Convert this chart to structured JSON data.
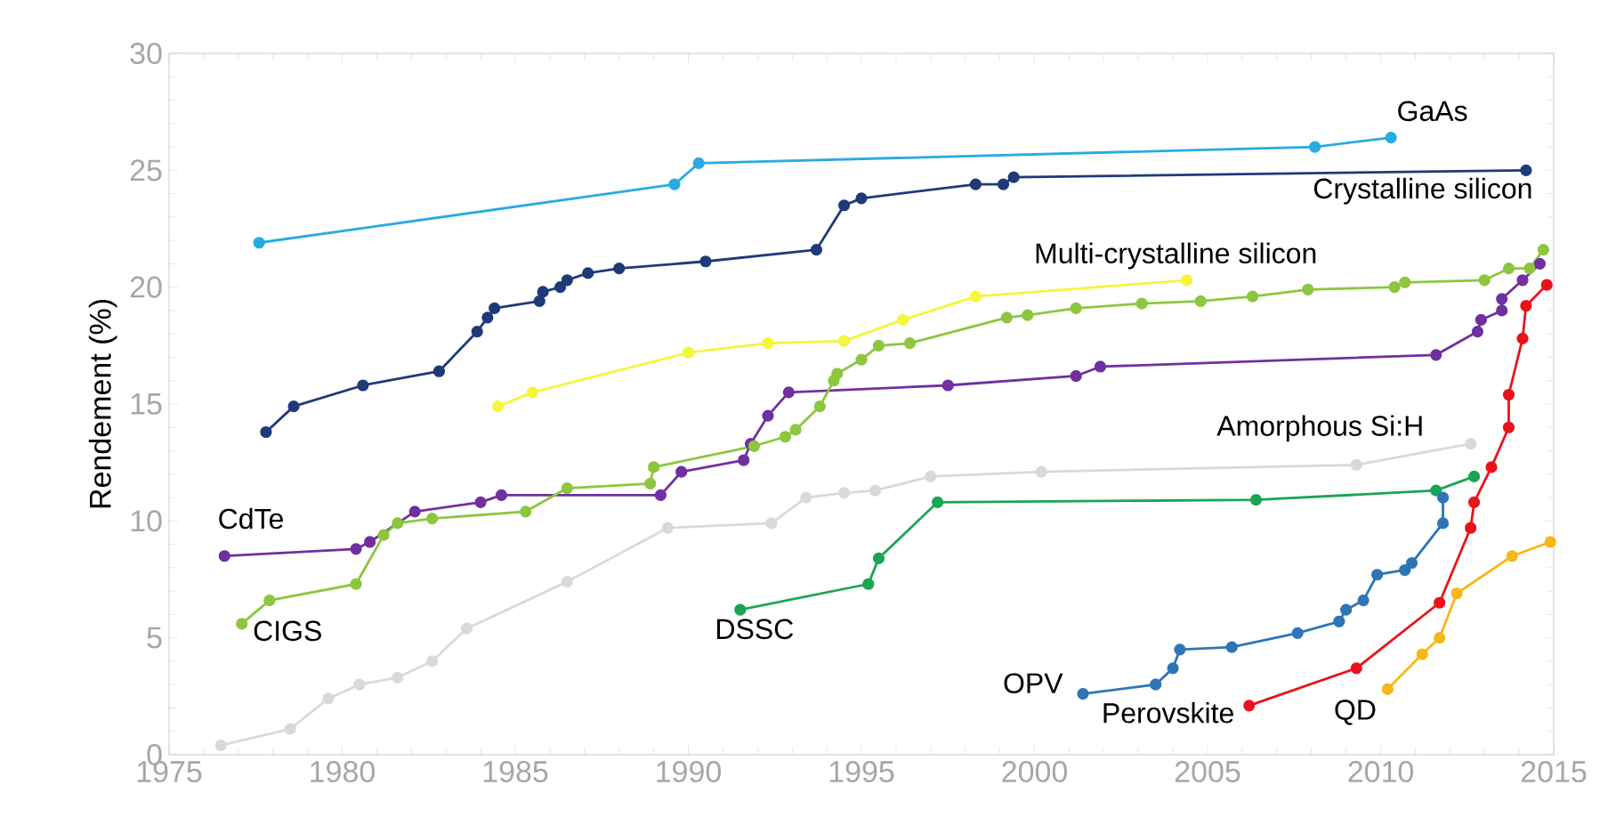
{
  "chart_data": {
    "type": "line",
    "ylabel": "Rendement (%)",
    "xlim": [
      1975,
      2015
    ],
    "ylim": [
      0,
      30
    ],
    "xticks": [
      1975,
      1980,
      1985,
      1990,
      1995,
      2000,
      2005,
      2010,
      2015
    ],
    "yticks": [
      0,
      5,
      10,
      15,
      20,
      25,
      30
    ],
    "grid": false,
    "legend": false,
    "marker": "circle",
    "line_style": "solid",
    "series": [
      {
        "name": "GaAs",
        "color": "#29abe2",
        "x": [
          1977.6,
          1989.6,
          1990.3,
          2008.1,
          2010.3
        ],
        "values": [
          21.9,
          24.4,
          25.3,
          26.0,
          26.4
        ]
      },
      {
        "name": "Crystalline silicon",
        "color": "#1f3a78",
        "x": [
          1977.8,
          1978.6,
          1980.6,
          1982.8,
          1983.9,
          1984.2,
          1984.4,
          1985.7,
          1985.8,
          1986.3,
          1986.5,
          1987.1,
          1988.0,
          1990.5,
          1993.7,
          1994.5,
          1995.0,
          1998.3,
          1999.1,
          1999.4,
          2014.2
        ],
        "values": [
          13.8,
          14.9,
          15.8,
          16.4,
          18.1,
          18.7,
          19.1,
          19.4,
          19.8,
          20.0,
          20.3,
          20.6,
          20.8,
          21.1,
          21.6,
          23.5,
          23.8,
          24.4,
          24.4,
          24.7,
          25.0
        ]
      },
      {
        "name": "Multi-crystalline silicon",
        "color": "#f5f53b",
        "x": [
          1984.5,
          1985.5,
          1990.0,
          1992.3,
          1994.5,
          1996.2,
          1998.3,
          2004.4
        ],
        "values": [
          14.9,
          15.5,
          17.2,
          17.6,
          17.7,
          18.6,
          19.6,
          20.3
        ]
      },
      {
        "name": "CdTe",
        "color": "#7030a0",
        "x": [
          1976.6,
          1980.4,
          1980.8,
          1982.1,
          1984.0,
          1984.6,
          1989.2,
          1989.8,
          1991.6,
          1991.8,
          1992.3,
          1992.9,
          1997.5,
          2001.2,
          2001.9,
          2011.6,
          2012.8,
          2012.9,
          2013.5,
          2013.5,
          2014.1,
          2014.6
        ],
        "values": [
          8.5,
          8.8,
          9.1,
          10.4,
          10.8,
          11.1,
          11.1,
          12.1,
          12.6,
          13.3,
          14.5,
          15.5,
          15.8,
          16.2,
          16.6,
          17.1,
          18.1,
          18.6,
          19.0,
          19.5,
          20.3,
          21.0
        ]
      },
      {
        "name": "CIGS",
        "color": "#8dc63f",
        "x": [
          1977.1,
          1977.9,
          1980.4,
          1981.2,
          1981.6,
          1982.6,
          1985.3,
          1986.5,
          1988.9,
          1989.0,
          1991.9,
          1992.8,
          1993.1,
          1993.8,
          1994.2,
          1994.3,
          1995.0,
          1995.5,
          1996.4,
          1999.2,
          1999.8,
          2001.2,
          2003.1,
          2004.8,
          2006.3,
          2007.9,
          2010.4,
          2010.7,
          2013.0,
          2013.7,
          2014.3,
          2014.7
        ],
        "values": [
          5.6,
          6.6,
          7.3,
          9.4,
          9.9,
          10.1,
          10.4,
          11.4,
          11.6,
          12.3,
          13.2,
          13.6,
          13.9,
          14.9,
          16.0,
          16.3,
          16.9,
          17.5,
          17.6,
          18.7,
          18.8,
          19.1,
          19.3,
          19.4,
          19.6,
          19.9,
          20.0,
          20.2,
          20.3,
          20.8,
          20.8,
          21.6
        ]
      },
      {
        "name": "Amorphous Si:H",
        "color": "#d9d9d9",
        "x": [
          1976.5,
          1978.5,
          1979.6,
          1980.5,
          1981.6,
          1982.6,
          1983.6,
          1986.5,
          1989.4,
          1992.4,
          1993.4,
          1994.5,
          1995.4,
          1997.0,
          2000.2,
          2009.3,
          2012.6
        ],
        "values": [
          0.4,
          1.1,
          2.4,
          3.0,
          3.3,
          4.0,
          5.4,
          7.4,
          9.7,
          9.9,
          11.0,
          11.2,
          11.3,
          11.9,
          12.1,
          12.4,
          13.3
        ]
      },
      {
        "name": "DSSC",
        "color": "#1aa555",
        "x": [
          1991.5,
          1995.2,
          1995.5,
          1997.2,
          2006.4,
          2011.6,
          2012.7
        ],
        "values": [
          6.2,
          7.3,
          8.4,
          10.8,
          10.9,
          11.3,
          11.9
        ]
      },
      {
        "name": "OPV",
        "color": "#2e75b6",
        "x": [
          2001.4,
          2003.5,
          2004.0,
          2004.2,
          2005.7,
          2007.6,
          2008.8,
          2009.0,
          2009.5,
          2009.9,
          2010.7,
          2010.9,
          2011.8,
          2011.8
        ],
        "values": [
          2.6,
          3.0,
          3.7,
          4.5,
          4.6,
          5.2,
          5.7,
          6.2,
          6.6,
          7.7,
          7.9,
          8.2,
          9.9,
          11.0
        ]
      },
      {
        "name": "Perovskite",
        "color": "#e8141b",
        "x": [
          2006.2,
          2009.3,
          2011.7,
          2012.6,
          2012.7,
          2013.2,
          2013.7,
          2013.7,
          2014.1,
          2014.2,
          2014.8
        ],
        "values": [
          2.1,
          3.7,
          6.5,
          9.7,
          10.8,
          12.3,
          14.0,
          15.4,
          17.8,
          19.2,
          20.1
        ]
      },
      {
        "name": "QD",
        "color": "#f5b915",
        "x": [
          2010.2,
          2011.2,
          2011.7,
          2012.2,
          2013.8,
          2014.9
        ],
        "values": [
          2.8,
          4.3,
          5.0,
          6.9,
          8.5,
          9.1
        ]
      }
    ]
  }
}
